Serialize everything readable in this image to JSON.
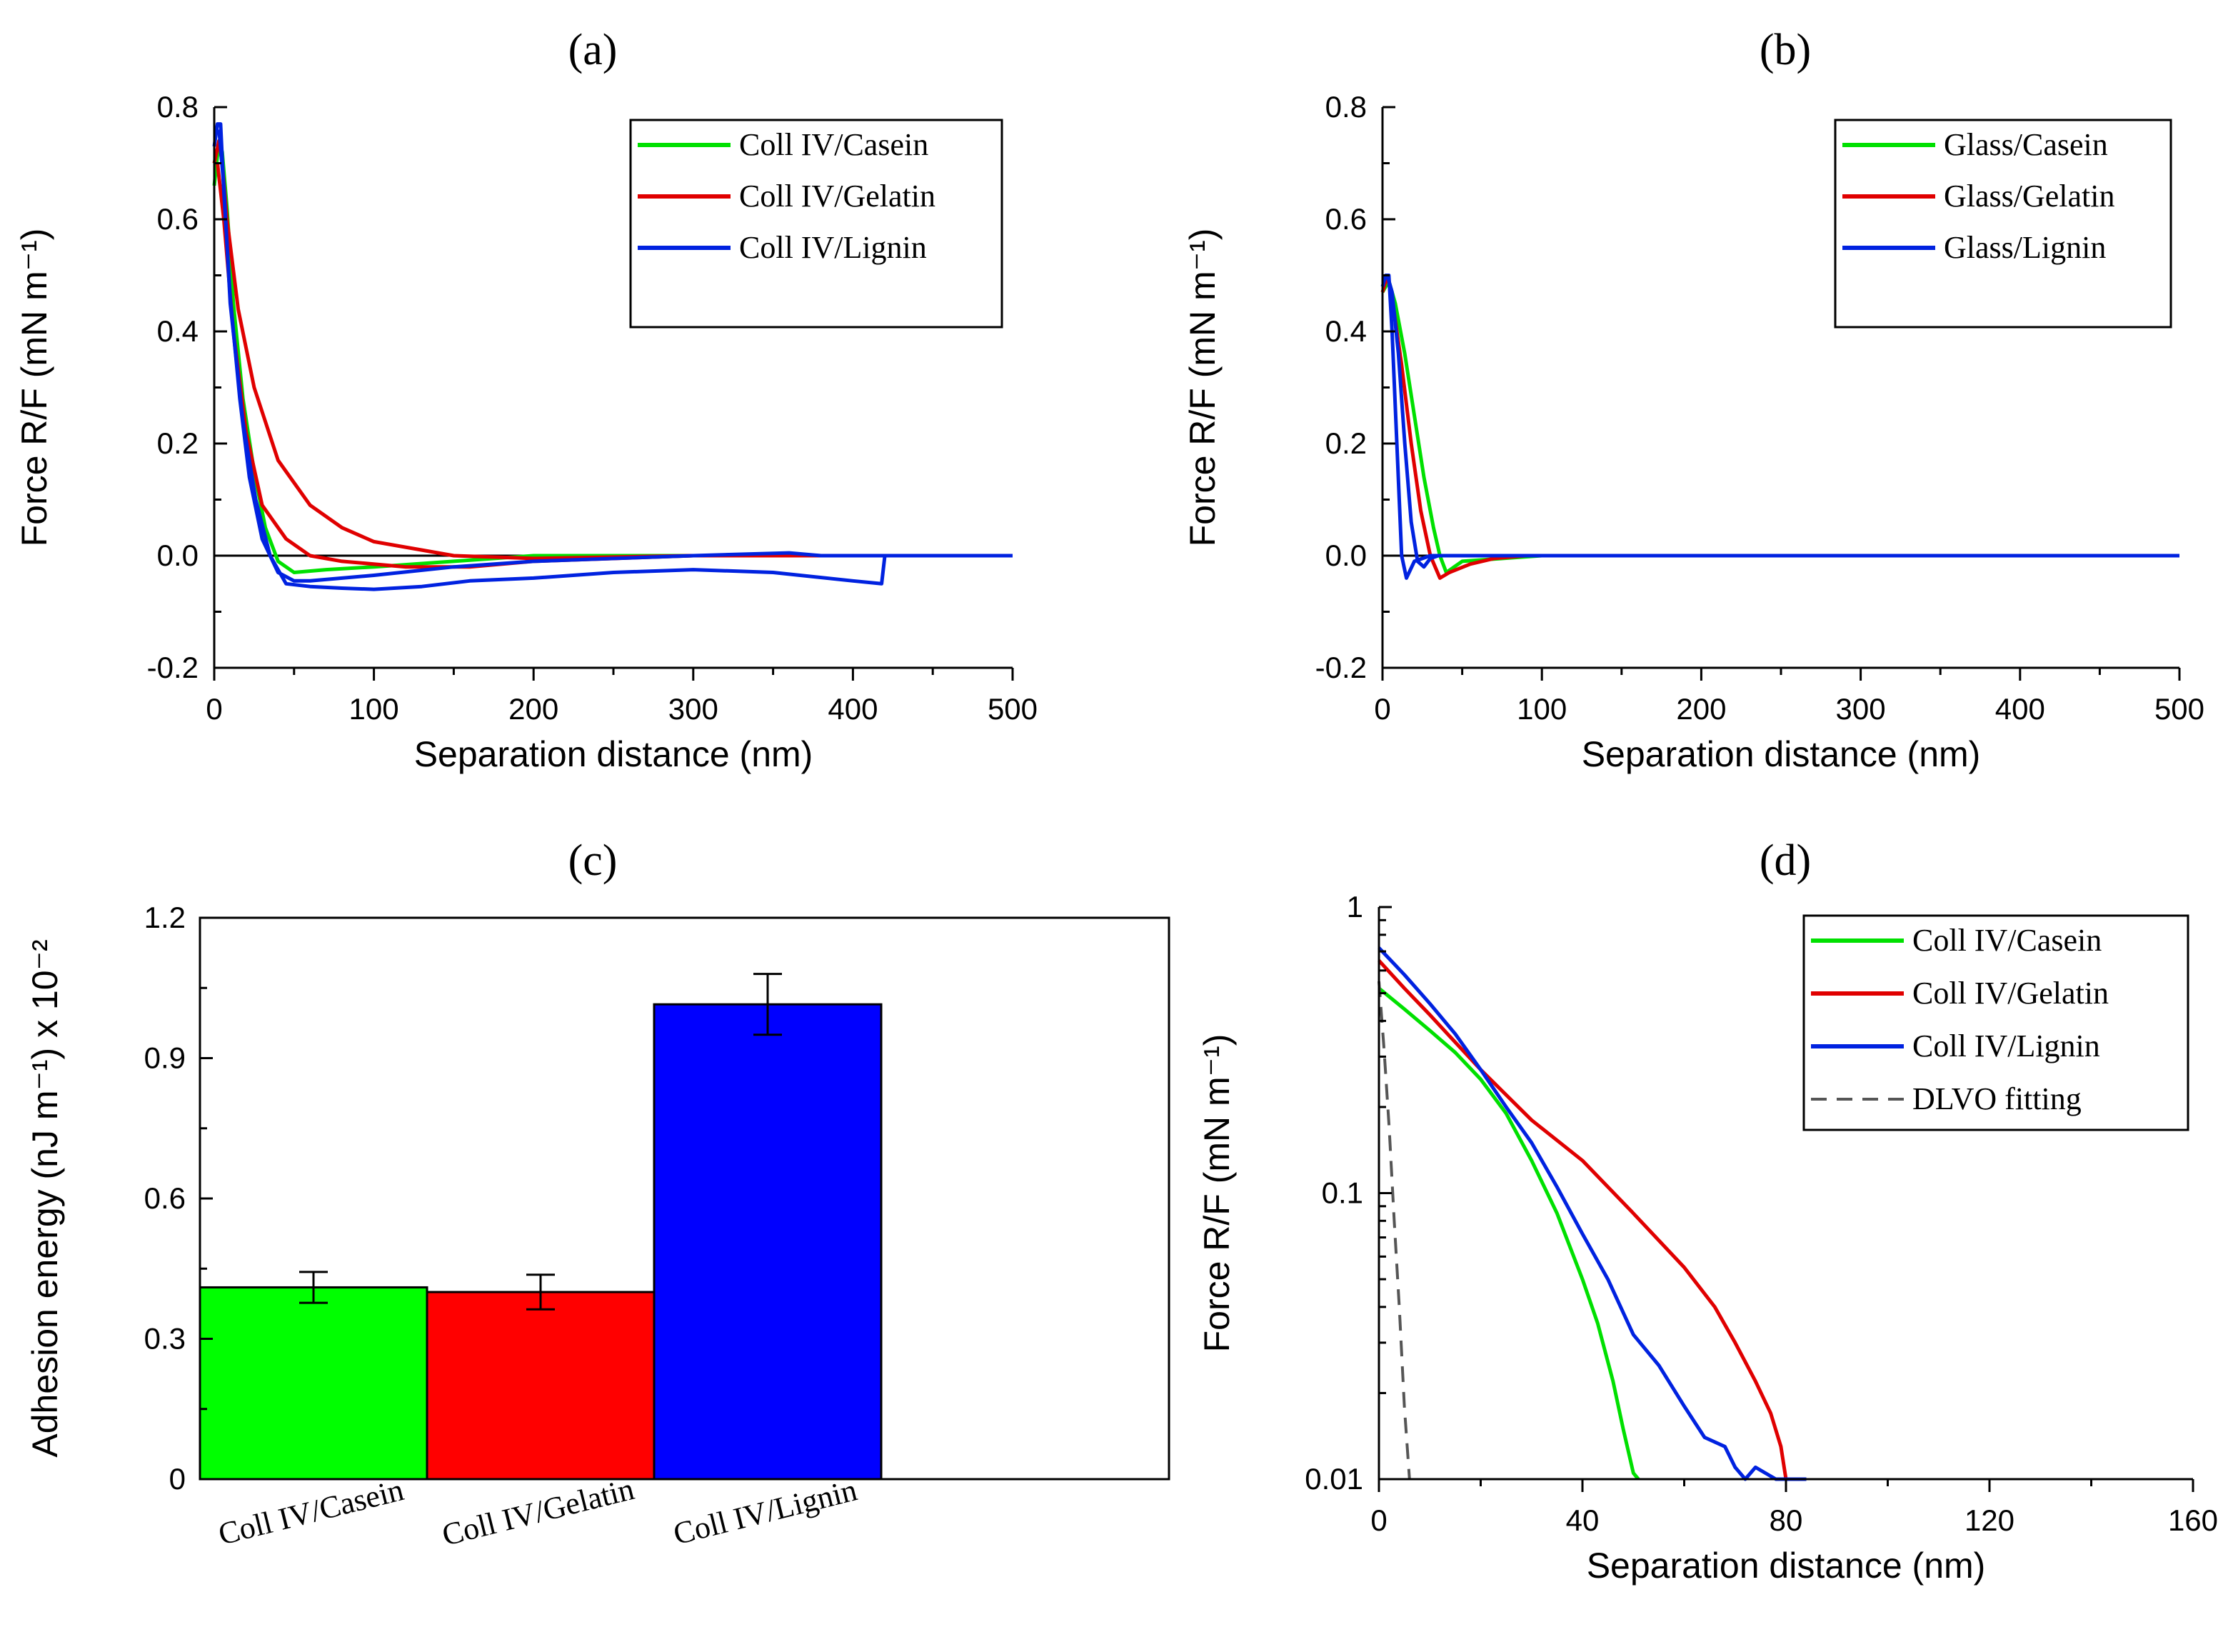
{
  "chart_data": [
    {
      "panel": "(a)",
      "type": "line",
      "xlabel": "Separation distance (nm)",
      "ylabel": "Force R/F (mN m⁻¹)",
      "xlim": [
        0,
        500
      ],
      "ylim": [
        -0.2,
        0.8
      ],
      "xticks": [
        "0",
        "100",
        "200",
        "300",
        "400",
        "500"
      ],
      "yticks": [
        "-0.2",
        "0.0",
        "0.2",
        "0.4",
        "0.6",
        "0.8"
      ],
      "legend_position": "top-right",
      "series": [
        {
          "name": "Coll IV/Casein",
          "color": "#00e000",
          "x": [
            0,
            3,
            5,
            8,
            12,
            18,
            25,
            32,
            40,
            50,
            70,
            100,
            150,
            200,
            300,
            400,
            500
          ],
          "y": [
            0.66,
            0.74,
            0.72,
            0.62,
            0.45,
            0.28,
            0.15,
            0.05,
            -0.01,
            -0.03,
            -0.025,
            -0.02,
            -0.01,
            0.0,
            0.0,
            0.0,
            0.0
          ]
        },
        {
          "name": "Coll IV/Gelatin (approach)",
          "color": "#e00000",
          "x": [
            0,
            3,
            5,
            8,
            15,
            25,
            40,
            60,
            80,
            100,
            130,
            150,
            200,
            300,
            500
          ],
          "y": [
            0.7,
            0.74,
            0.7,
            0.6,
            0.44,
            0.3,
            0.17,
            0.09,
            0.05,
            0.025,
            0.01,
            0.0,
            -0.005,
            0.0,
            0.0
          ]
        },
        {
          "name": "Coll IV/Gelatin (retract)",
          "color": "#e00000",
          "x": [
            2,
            6,
            12,
            20,
            30,
            45,
            60,
            80,
            120,
            160,
            200,
            300,
            500
          ],
          "y": [
            0.7,
            0.6,
            0.4,
            0.22,
            0.09,
            0.03,
            0.0,
            -0.01,
            -0.02,
            -0.02,
            -0.01,
            0.0,
            0.0
          ]
        },
        {
          "name": "Coll IV/Lignin (approach)",
          "color": "#0022e0",
          "x": [
            0,
            2,
            4,
            6,
            10,
            16,
            22,
            30,
            40,
            50,
            60,
            80,
            100,
            150,
            200,
            250,
            300,
            360,
            380,
            400,
            500
          ],
          "y": [
            0.73,
            0.77,
            0.77,
            0.65,
            0.46,
            0.28,
            0.14,
            0.03,
            -0.03,
            -0.045,
            -0.045,
            -0.04,
            -0.035,
            -0.02,
            -0.01,
            -0.005,
            0.0,
            0.005,
            0.0,
            0.0,
            0.0
          ]
        },
        {
          "name": "Coll IV/Lignin (retract)",
          "color": "#0022e0",
          "x": [
            3,
            6,
            10,
            18,
            26,
            35,
            45,
            60,
            80,
            100,
            130,
            160,
            200,
            250,
            300,
            350,
            400,
            418,
            420,
            430,
            500
          ],
          "y": [
            0.76,
            0.66,
            0.45,
            0.24,
            0.1,
            0.0,
            -0.05,
            -0.055,
            -0.058,
            -0.06,
            -0.055,
            -0.045,
            -0.04,
            -0.03,
            -0.025,
            -0.03,
            -0.045,
            -0.05,
            0.0,
            0.0,
            0.0
          ]
        }
      ],
      "legend": [
        "Coll IV/Casein",
        "Coll IV/Gelatin",
        "Coll IV/Lignin"
      ]
    },
    {
      "panel": "(b)",
      "type": "line",
      "xlabel": "Separation distance (nm)",
      "ylabel": "Force R/F (mN m⁻¹)",
      "xlim": [
        0,
        500
      ],
      "ylim": [
        -0.2,
        0.8
      ],
      "xticks": [
        "0",
        "100",
        "200",
        "300",
        "400",
        "500"
      ],
      "yticks": [
        "-0.2",
        "0.0",
        "0.2",
        "0.4",
        "0.6",
        "0.8"
      ],
      "legend_position": "top-right",
      "series": [
        {
          "name": "Glass/Casein",
          "color": "#00e000",
          "x": [
            0,
            4,
            8,
            14,
            20,
            26,
            32,
            36,
            40,
            50,
            100,
            500
          ],
          "y": [
            0.47,
            0.49,
            0.45,
            0.36,
            0.25,
            0.14,
            0.05,
            0.0,
            -0.03,
            -0.01,
            0.0,
            0.0
          ]
        },
        {
          "name": "Glass/Gelatin",
          "color": "#e00000",
          "x": [
            0,
            3,
            6,
            12,
            18,
            24,
            30,
            36,
            42,
            55,
            70,
            90,
            500
          ],
          "y": [
            0.47,
            0.5,
            0.46,
            0.34,
            0.2,
            0.08,
            0.0,
            -0.04,
            -0.03,
            -0.015,
            -0.005,
            0.0,
            0.0
          ]
        },
        {
          "name": "Glass/Lignin (approach)",
          "color": "#0022e0",
          "x": [
            0,
            2,
            4,
            6,
            9,
            12,
            15,
            20,
            30,
            500
          ],
          "y": [
            0.48,
            0.5,
            0.5,
            0.4,
            0.2,
            0.0,
            -0.04,
            -0.01,
            0.0,
            0.0
          ]
        },
        {
          "name": "Glass/Lignin (retract)",
          "color": "#0022e0",
          "x": [
            3,
            6,
            10,
            14,
            18,
            22,
            26,
            30,
            35,
            500
          ],
          "y": [
            0.5,
            0.47,
            0.36,
            0.2,
            0.06,
            -0.01,
            -0.02,
            -0.005,
            0.0,
            0.0
          ]
        }
      ],
      "legend": [
        "Glass/Casein",
        "Glass/Gelatin",
        "Glass/Lignin"
      ]
    },
    {
      "panel": "(c)",
      "type": "bar",
      "ylabel": "Adhesion energy (nJ m⁻¹) x 10⁻²",
      "ylim": [
        0,
        1.2
      ],
      "yticks": [
        "0",
        "0.3",
        "0.6",
        "0.9",
        "1.2"
      ],
      "categories": [
        "Coll IV/Casein",
        "Coll IV/Gelatin",
        "Coll IV/Lignin"
      ],
      "values": [
        0.41,
        0.4,
        1.015
      ],
      "errors": [
        0.033,
        0.037,
        0.065
      ],
      "colors": [
        "#00ff00",
        "#ff0000",
        "#0000ff"
      ]
    },
    {
      "panel": "(d)",
      "type": "line",
      "yscale": "log",
      "xlabel": "Separation distance (nm)",
      "ylabel": "Force R/F (mN m⁻¹)",
      "xlim": [
        0,
        160
      ],
      "ylim": [
        0.01,
        1
      ],
      "xticks": [
        "0",
        "40",
        "80",
        "120",
        "160"
      ],
      "yticks": [
        "0.01",
        "0.1",
        "1"
      ],
      "legend_position": "top-right",
      "series": [
        {
          "name": "Coll IV/Casein",
          "color": "#00e000",
          "dash": false,
          "x": [
            0,
            5,
            10,
            15,
            20,
            25,
            30,
            35,
            40,
            43,
            46,
            48,
            50,
            51
          ],
          "y": [
            0.52,
            0.44,
            0.37,
            0.31,
            0.25,
            0.19,
            0.13,
            0.085,
            0.05,
            0.035,
            0.022,
            0.015,
            0.0105,
            0.01
          ]
        },
        {
          "name": "Coll IV/Gelatin",
          "color": "#e00000",
          "dash": false,
          "x": [
            0,
            5,
            10,
            20,
            30,
            40,
            50,
            60,
            66,
            70,
            74,
            77,
            79,
            80
          ],
          "y": [
            0.65,
            0.52,
            0.42,
            0.27,
            0.18,
            0.13,
            0.085,
            0.055,
            0.04,
            0.03,
            0.022,
            0.017,
            0.013,
            0.01
          ]
        },
        {
          "name": "Coll IV/Lignin",
          "color": "#0022e0",
          "dash": false,
          "x": [
            0,
            5,
            10,
            15,
            20,
            25,
            30,
            35,
            40,
            45,
            50,
            55,
            60,
            64,
            68,
            70,
            72,
            74,
            78,
            84
          ],
          "y": [
            0.72,
            0.58,
            0.46,
            0.36,
            0.27,
            0.2,
            0.15,
            0.105,
            0.072,
            0.05,
            0.032,
            0.025,
            0.018,
            0.014,
            0.013,
            0.011,
            0.01,
            0.011,
            0.01,
            0.01
          ]
        },
        {
          "name": "DLVO fitting",
          "color": "#555555",
          "dash": true,
          "x": [
            0,
            1,
            2,
            3,
            4,
            5,
            6
          ],
          "y": [
            0.55,
            0.32,
            0.17,
            0.08,
            0.04,
            0.018,
            0.01
          ]
        }
      ],
      "legend": [
        "Coll IV/Casein",
        "Coll IV/Gelatin",
        "Coll IV/Lignin",
        "DLVO fitting"
      ]
    }
  ]
}
